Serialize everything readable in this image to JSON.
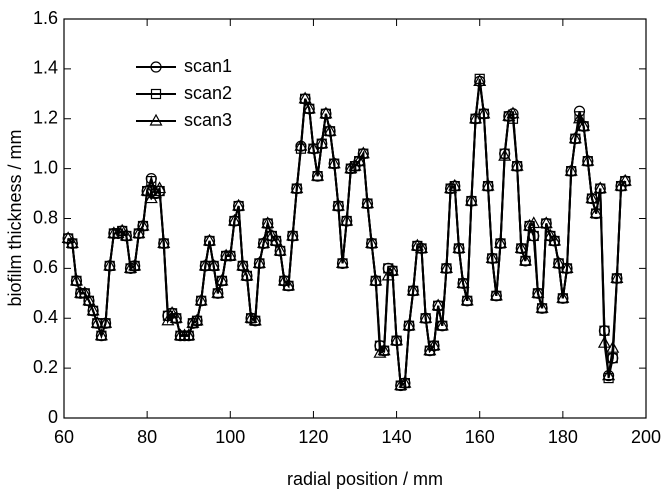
{
  "chart_data": {
    "type": "line",
    "x_label": "radial position / mm",
    "y_label": "biofilm thickness / mm",
    "xlim": [
      60,
      200
    ],
    "xticks": [
      60,
      80,
      100,
      120,
      140,
      160,
      180,
      200
    ],
    "ylim": [
      0,
      1.6
    ],
    "yticks": [
      0,
      0.2,
      0.4,
      0.6,
      0.8,
      {
        "value": 1,
        "label": "1.0"
      },
      1.2,
      1.4,
      1.6
    ],
    "legend": "upper left",
    "x": [
      61,
      62,
      63,
      64,
      65,
      66,
      67,
      68,
      69,
      70,
      71,
      72,
      73,
      74,
      75,
      76,
      77,
      78,
      79,
      80,
      81,
      82,
      83,
      84,
      85,
      86,
      87,
      88,
      89,
      90,
      91,
      92,
      93,
      94,
      95,
      96,
      97,
      98,
      99,
      100,
      101,
      102,
      103,
      104,
      105,
      106,
      107,
      108,
      109,
      110,
      111,
      112,
      113,
      114,
      115,
      116,
      117,
      118,
      119,
      120,
      121,
      122,
      123,
      124,
      125,
      126,
      127,
      128,
      129,
      130,
      131,
      132,
      133,
      134,
      135,
      136,
      137,
      138,
      139,
      140,
      141,
      142,
      143,
      144,
      145,
      146,
      147,
      148,
      149,
      150,
      151,
      152,
      153,
      154,
      155,
      156,
      157,
      158,
      159,
      160,
      161,
      162,
      163,
      164,
      165,
      166,
      167,
      168,
      169,
      170,
      171,
      172,
      173,
      174,
      175,
      176,
      177,
      178,
      179,
      180,
      181,
      182,
      183,
      184,
      185,
      186,
      187,
      188,
      189,
      190,
      191,
      192,
      193,
      194,
      195
    ],
    "series": [
      {
        "name": "scan1",
        "color": "#000000",
        "marker": "circle",
        "values": [
          0.72,
          0.7,
          0.55,
          0.5,
          0.5,
          0.47,
          0.43,
          0.38,
          0.33,
          0.38,
          0.61,
          0.74,
          0.74,
          0.75,
          0.73,
          0.6,
          0.61,
          0.74,
          0.77,
          0.91,
          0.96,
          0.9,
          0.91,
          0.7,
          0.41,
          0.42,
          0.4,
          0.33,
          0.33,
          0.33,
          0.38,
          0.39,
          0.47,
          0.61,
          0.71,
          0.61,
          0.5,
          0.55,
          0.65,
          0.65,
          0.79,
          0.85,
          0.61,
          0.57,
          0.4,
          0.39,
          0.62,
          0.7,
          0.78,
          0.73,
          0.71,
          0.67,
          0.55,
          0.53,
          0.73,
          0.92,
          1.09,
          1.28,
          1.24,
          1.08,
          0.97,
          1.1,
          1.22,
          1.15,
          1.02,
          0.85,
          0.62,
          0.79,
          1.0,
          1.01,
          1.03,
          1.06,
          0.86,
          0.7,
          0.55,
          0.29,
          0.27,
          0.6,
          0.59,
          0.31,
          0.13,
          0.14,
          0.37,
          0.51,
          0.69,
          0.68,
          0.4,
          0.27,
          0.29,
          0.45,
          0.37,
          0.6,
          0.92,
          0.93,
          0.68,
          0.54,
          0.47,
          0.87,
          1.2,
          1.35,
          1.22,
          0.93,
          0.64,
          0.49,
          0.7,
          1.06,
          1.21,
          1.22,
          1.01,
          0.68,
          0.63,
          0.77,
          0.73,
          0.5,
          0.44,
          0.78,
          0.73,
          0.71,
          0.62,
          0.48,
          0.6,
          0.99,
          1.12,
          1.23,
          1.17,
          1.03,
          0.88,
          0.82,
          0.92,
          0.35,
          0.17,
          0.24,
          0.56,
          0.93,
          0.95
        ]
      },
      {
        "name": "scan2",
        "color": "#000000",
        "marker": "square",
        "values": [
          0.72,
          0.7,
          0.55,
          0.5,
          0.5,
          0.47,
          0.43,
          0.38,
          0.33,
          0.38,
          0.61,
          0.74,
          0.74,
          0.75,
          0.73,
          0.6,
          0.61,
          0.74,
          0.77,
          0.91,
          0.95,
          0.9,
          0.91,
          0.7,
          0.41,
          0.42,
          0.4,
          0.33,
          0.33,
          0.33,
          0.38,
          0.39,
          0.47,
          0.61,
          0.71,
          0.61,
          0.5,
          0.55,
          0.65,
          0.65,
          0.79,
          0.85,
          0.61,
          0.57,
          0.4,
          0.39,
          0.62,
          0.7,
          0.78,
          0.73,
          0.71,
          0.67,
          0.55,
          0.53,
          0.73,
          0.92,
          1.08,
          1.28,
          1.24,
          1.08,
          0.97,
          1.1,
          1.22,
          1.15,
          1.02,
          0.85,
          0.62,
          0.79,
          1.0,
          1.01,
          1.03,
          1.06,
          0.86,
          0.7,
          0.55,
          0.29,
          0.27,
          0.6,
          0.59,
          0.31,
          0.13,
          0.14,
          0.37,
          0.51,
          0.69,
          0.68,
          0.4,
          0.27,
          0.29,
          0.45,
          0.37,
          0.6,
          0.92,
          0.93,
          0.68,
          0.54,
          0.47,
          0.87,
          1.2,
          1.36,
          1.22,
          0.93,
          0.64,
          0.49,
          0.7,
          1.06,
          1.21,
          1.2,
          1.01,
          0.68,
          0.63,
          0.77,
          0.73,
          0.5,
          0.44,
          0.78,
          0.73,
          0.71,
          0.62,
          0.48,
          0.6,
          0.99,
          1.12,
          1.21,
          1.17,
          1.03,
          0.88,
          0.82,
          0.92,
          0.35,
          0.16,
          0.24,
          0.56,
          0.93,
          0.95
        ]
      },
      {
        "name": "scan3",
        "color": "#000000",
        "marker": "triangle",
        "values": [
          0.72,
          0.7,
          0.55,
          0.5,
          0.5,
          0.47,
          0.43,
          0.38,
          0.33,
          0.38,
          0.61,
          0.74,
          0.74,
          0.75,
          0.73,
          0.6,
          0.61,
          0.74,
          0.77,
          0.91,
          0.88,
          0.9,
          0.92,
          0.7,
          0.39,
          0.42,
          0.4,
          0.33,
          0.33,
          0.33,
          0.38,
          0.39,
          0.47,
          0.61,
          0.71,
          0.61,
          0.5,
          0.55,
          0.65,
          0.65,
          0.79,
          0.85,
          0.61,
          0.57,
          0.4,
          0.39,
          0.62,
          0.7,
          0.78,
          0.73,
          0.71,
          0.67,
          0.55,
          0.53,
          0.73,
          0.92,
          1.09,
          1.28,
          1.24,
          1.08,
          0.97,
          1.1,
          1.22,
          1.15,
          1.02,
          0.85,
          0.62,
          0.79,
          1.0,
          1.01,
          1.03,
          1.06,
          0.86,
          0.7,
          0.55,
          0.26,
          0.27,
          0.57,
          0.59,
          0.31,
          0.13,
          0.14,
          0.37,
          0.51,
          0.69,
          0.68,
          0.4,
          0.27,
          0.29,
          0.45,
          0.37,
          0.6,
          0.92,
          0.93,
          0.68,
          0.54,
          0.47,
          0.87,
          1.2,
          1.35,
          1.22,
          0.93,
          0.64,
          0.49,
          0.7,
          1.05,
          1.21,
          1.22,
          1.01,
          0.68,
          0.63,
          0.77,
          0.78,
          0.5,
          0.44,
          0.78,
          0.73,
          0.71,
          0.62,
          0.48,
          0.6,
          0.99,
          1.12,
          1.2,
          1.17,
          1.03,
          0.88,
          0.82,
          0.92,
          0.3,
          0.17,
          0.28,
          0.56,
          0.93,
          0.95
        ]
      }
    ]
  }
}
